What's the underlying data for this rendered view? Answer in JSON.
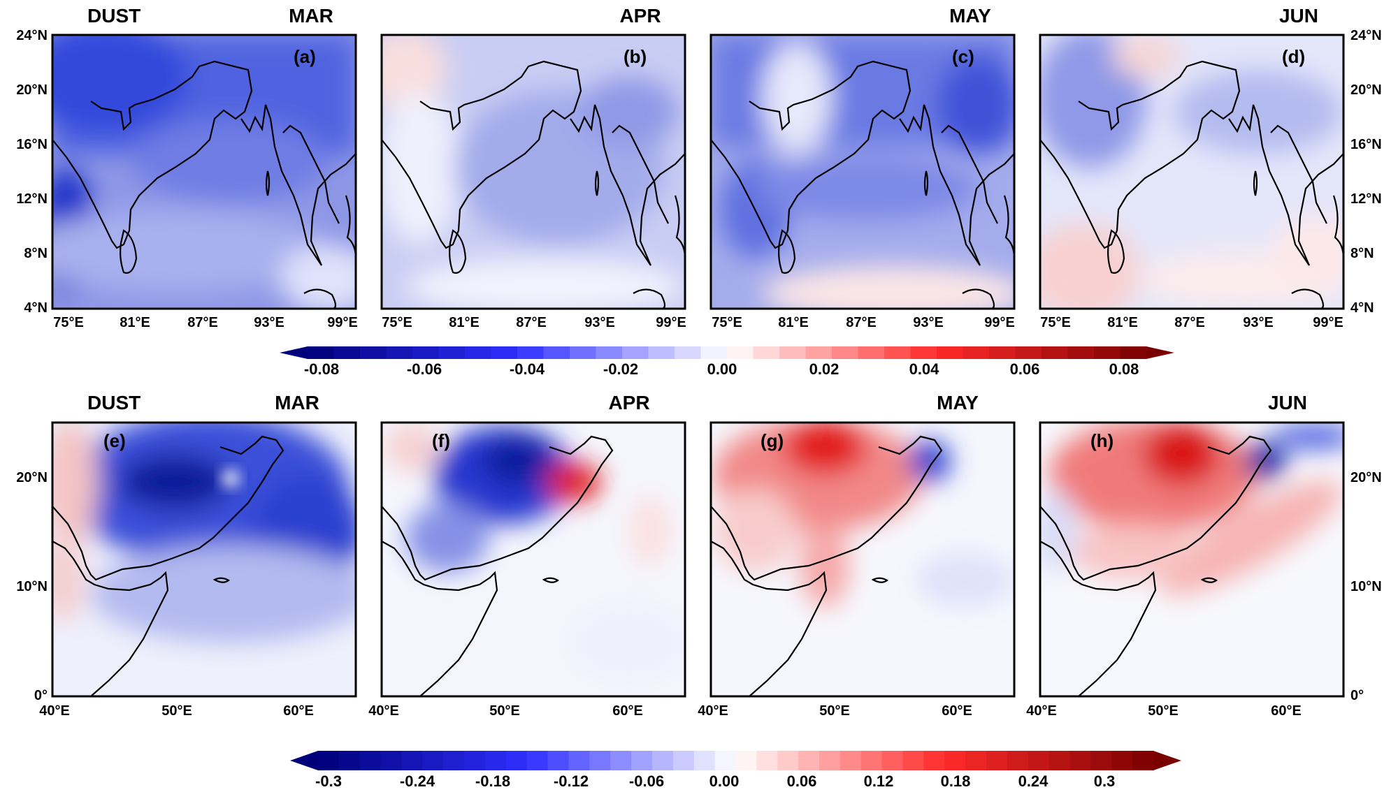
{
  "figure": {
    "top_row": {
      "variable": "DUST",
      "panels": [
        {
          "label": "(a)",
          "month": "MAR"
        },
        {
          "label": "(b)",
          "month": "APR"
        },
        {
          "label": "(c)",
          "month": "MAY"
        },
        {
          "label": "(d)",
          "month": "JUN"
        }
      ],
      "x_ticks": [
        "75°E",
        "81°E",
        "87°E",
        "93°E",
        "99°E"
      ],
      "y_ticks": [
        "24°N",
        "20°N",
        "16°N",
        "12°N",
        "8°N",
        "4°N"
      ],
      "colorbar": {
        "ticks": [
          "-0.08",
          "-0.06",
          "-0.04",
          "-0.02",
          "0.00",
          "0.02",
          "0.04",
          "0.06",
          "0.08"
        ],
        "range": [
          -0.08,
          0.08
        ],
        "steps": 32
      }
    },
    "bottom_row": {
      "variable": "DUST",
      "panels": [
        {
          "label": "(e)",
          "month": "MAR"
        },
        {
          "label": "(f)",
          "month": "APR"
        },
        {
          "label": "(g)",
          "month": "MAY"
        },
        {
          "label": "(h)",
          "month": "JUN"
        }
      ],
      "x_ticks": [
        "40°E",
        "50°E",
        "60°E"
      ],
      "y_ticks": [
        "20°N",
        "10°N",
        "0°"
      ],
      "colorbar": {
        "ticks": [
          "-0.3",
          "-0.24",
          "-0.18",
          "-0.12",
          "-0.06",
          "0.00",
          "0.06",
          "0.12",
          "0.18",
          "0.24",
          "0.3"
        ],
        "range": [
          -0.3,
          0.3
        ],
        "steps": 40
      }
    },
    "colors": {
      "neg_max": "#00007a",
      "neg_mid": "#2f2fff",
      "zero": "#ffffff",
      "pos_mid": "#ff2a2a",
      "pos_max": "#7a0000",
      "coast": "#000000"
    }
  }
}
